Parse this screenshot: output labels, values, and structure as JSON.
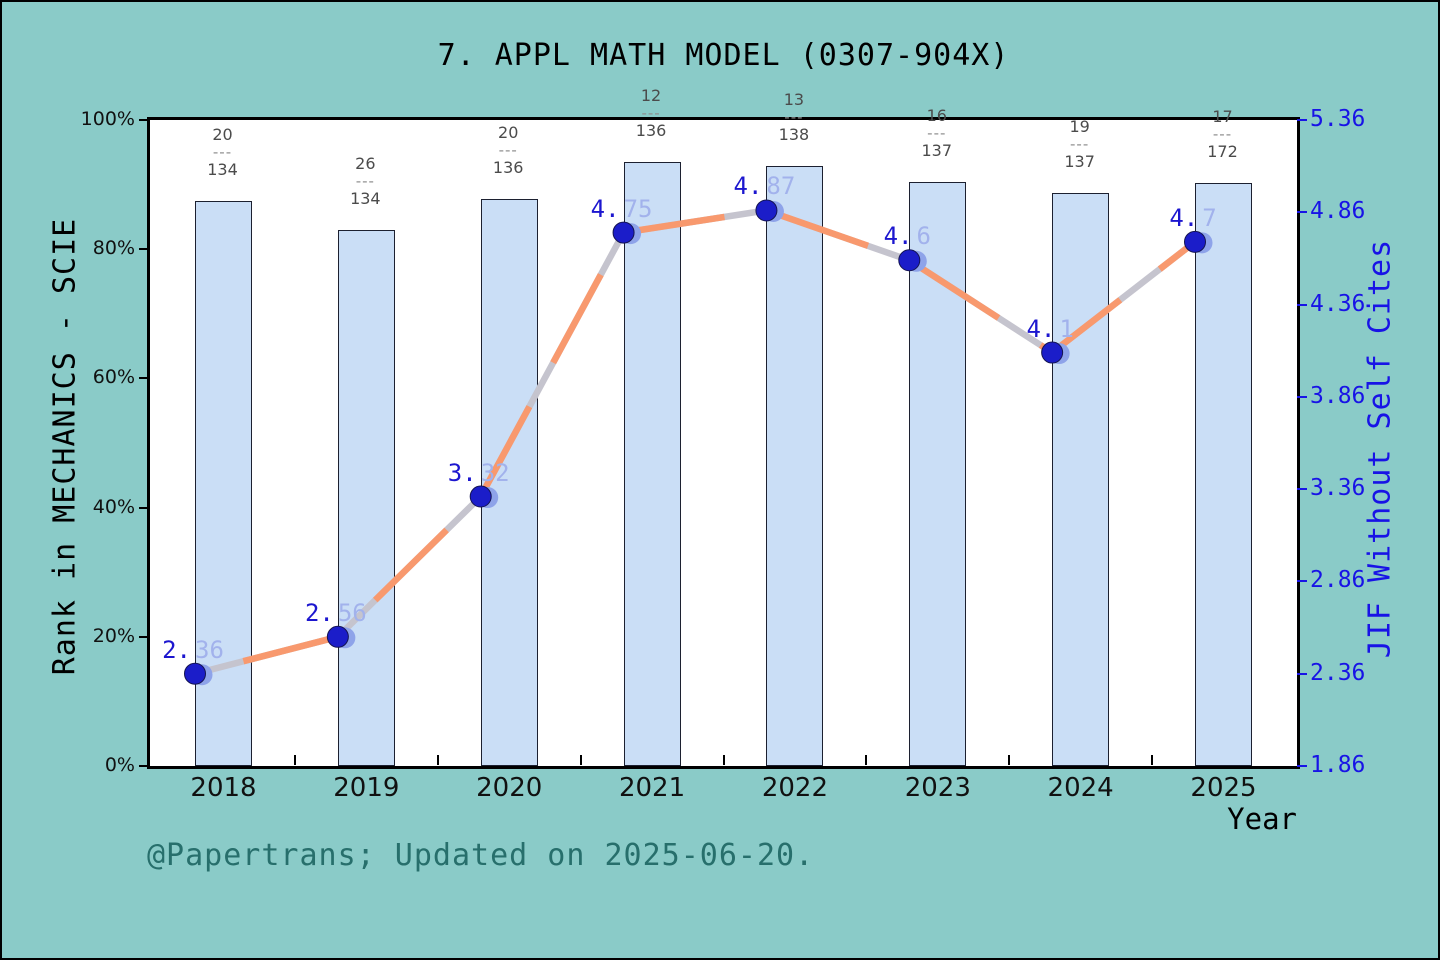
{
  "title": "7. APPL MATH MODEL (0307-904X)",
  "footer": "@Papertrans; Updated on 2025-06-20.",
  "axes": {
    "left": {
      "title": "Rank in MECHANICS - SCIE",
      "ticks": [
        "0%",
        "20%",
        "40%",
        "60%",
        "80%",
        "100%"
      ]
    },
    "right": {
      "title": "JIF Without Self Cites",
      "ticks": [
        "1.86",
        "2.36",
        "2.86",
        "3.36",
        "3.86",
        "4.36",
        "4.86",
        "5.36"
      ]
    },
    "x": {
      "title": "Year",
      "labels": [
        "2018",
        "2019",
        "2020",
        "2021",
        "2022",
        "2023",
        "2024",
        "2025"
      ]
    }
  },
  "chart_data": {
    "type": "bar",
    "categories": [
      "2018",
      "2019",
      "2020",
      "2021",
      "2022",
      "2023",
      "2024",
      "2025"
    ],
    "fraction_separator": "---",
    "series": [
      {
        "name": "Rank in MECHANICS - SCIE",
        "type": "bar",
        "axis": "left",
        "values_pct": [
          87.4,
          82.9,
          87.8,
          93.5,
          92.9,
          90.4,
          88.7,
          90.2
        ],
        "rank_labels": [
          {
            "numerator": "20",
            "denominator": "134"
          },
          {
            "numerator": "26",
            "denominator": "134"
          },
          {
            "numerator": "20",
            "denominator": "136"
          },
          {
            "numerator": "12",
            "denominator": "136"
          },
          {
            "numerator": "13",
            "denominator": "138"
          },
          {
            "numerator": "16",
            "denominator": "137"
          },
          {
            "numerator": "19",
            "denominator": "137"
          },
          {
            "numerator": "17",
            "denominator": "172"
          }
        ]
      },
      {
        "name": "JIF Without Self Cites",
        "type": "line",
        "axis": "right",
        "values": [
          2.36,
          2.56,
          3.32,
          4.75,
          4.87,
          4.6,
          4.1,
          4.7
        ],
        "point_labels": [
          "2.36",
          "2.56",
          "3.32",
          "4.75",
          "4.87",
          "4.6",
          "4.1",
          "4.7"
        ]
      }
    ],
    "left_ylim": [
      0,
      100
    ],
    "right_ylim": [
      1.86,
      5.36
    ],
    "grid": false,
    "legend": "none"
  },
  "colors": {
    "background": "#8acbc8",
    "plot_background": "#ffffff",
    "spine": "#000000",
    "bar_fill": "#cadef6",
    "bar_border": "#1c2030",
    "line_orange": "#f8996e",
    "line_gray": "#c5c4ce",
    "marker_dark": "#1b1dc9",
    "marker_light": "#8ea3e9",
    "point_label_dark": "#1c16cf",
    "point_label_light": "#a2b2ec",
    "right_axis_blue": "#1813e6",
    "fraction_gray": "#4b4b4b",
    "footer_teal": "#276f6c"
  }
}
